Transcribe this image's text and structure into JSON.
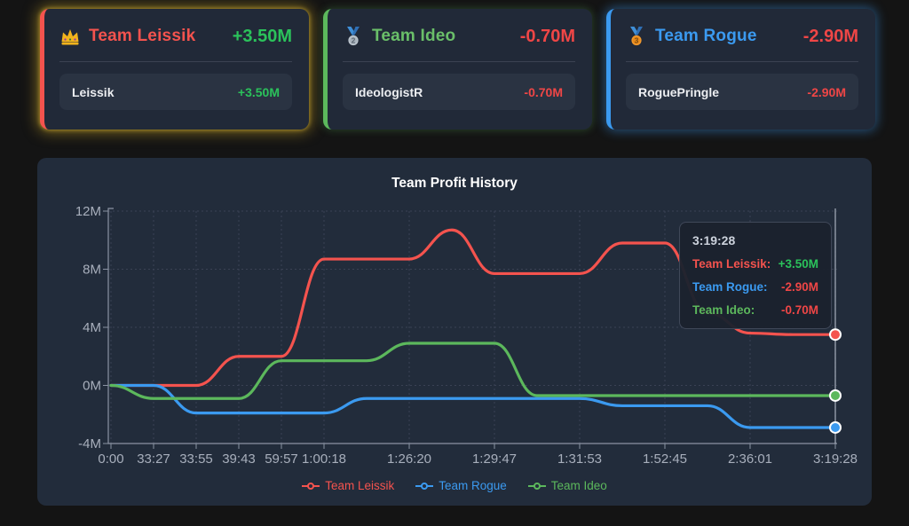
{
  "cards": [
    {
      "rank_icon": "crown-icon",
      "name": "Team Leissik",
      "name_color": "#f4534e",
      "value": "+3.50M",
      "value_color": "#2bc25b",
      "accent": "#f4534e",
      "member": {
        "name": "Leissik",
        "value": "+3.50M",
        "value_color": "#2bc25b"
      }
    },
    {
      "rank_icon": "silver-medal-icon",
      "name": "Team Ideo",
      "name_color": "#6abf69",
      "value": "-0.70M",
      "value_color": "#ef4646",
      "accent": "#5cb85c",
      "member": {
        "name": "IdeologistR",
        "value": "-0.70M",
        "value_color": "#ef4646"
      }
    },
    {
      "rank_icon": "bronze-medal-icon",
      "name": "Team Rogue",
      "name_color": "#3b9af0",
      "value": "-2.90M",
      "value_color": "#ef4646",
      "accent": "#3b9af0",
      "member": {
        "name": "RoguePringle",
        "value": "-2.90M",
        "value_color": "#ef4646"
      }
    }
  ],
  "chart": {
    "title": "Team Profit History",
    "legend": {
      "items": [
        {
          "label": "Team Leissik",
          "color": "#f4534e"
        },
        {
          "label": "Team Rogue",
          "color": "#3b9af0"
        },
        {
          "label": "Team Ideo",
          "color": "#5cb85c"
        }
      ]
    },
    "tooltip": {
      "title": "3:19:28",
      "rows": [
        {
          "name": "Team Leissik:",
          "name_color": "#f4534e",
          "value": "+3.50M",
          "value_color": "#2bc25b"
        },
        {
          "name": "Team Rogue:",
          "name_color": "#3b9af0",
          "value": "-2.90M",
          "value_color": "#ef4646"
        },
        {
          "name": "Team Ideo:",
          "name_color": "#5cb85c",
          "value": "-0.70M",
          "value_color": "#ef4646"
        }
      ]
    }
  },
  "chart_data": {
    "type": "line",
    "title": "Team Profit History",
    "x_tick_labels": [
      "0:00",
      "33:27",
      "33:55",
      "39:43",
      "59:57",
      "1:00:18",
      "1:26:20",
      "1:29:47",
      "1:31:53",
      "1:52:45",
      "2:36:01",
      "3:19:28"
    ],
    "x_tick_slots": [
      0,
      1,
      2,
      3,
      4,
      5,
      7,
      9,
      11,
      13,
      15,
      17
    ],
    "n_points": 18,
    "y_tick_labels": [
      "12M",
      "8M",
      "4M",
      "0M",
      "-4M"
    ],
    "y_tick_values": [
      12,
      8,
      4,
      0,
      -4
    ],
    "ylim": [
      -4,
      12
    ],
    "grid": "dotted",
    "legend_position": "bottom",
    "crosshair_slot": 17,
    "series": [
      {
        "name": "Team Leissik",
        "color": "#f4534e",
        "values": [
          0,
          0,
          0,
          2.0,
          2.0,
          8.7,
          8.7,
          8.7,
          10.7,
          7.7,
          7.7,
          7.7,
          9.8,
          9.8,
          5.0,
          3.6,
          3.5,
          3.5
        ]
      },
      {
        "name": "Team Rogue",
        "color": "#3b9af0",
        "values": [
          0,
          0,
          -1.9,
          -1.9,
          -1.9,
          -1.9,
          -0.9,
          -0.9,
          -0.9,
          -0.9,
          -0.9,
          -0.9,
          -1.4,
          -1.4,
          -1.4,
          -2.9,
          -2.9,
          -2.9
        ]
      },
      {
        "name": "Team Ideo",
        "color": "#5cb85c",
        "values": [
          0,
          -0.9,
          -0.9,
          -0.9,
          1.7,
          1.7,
          1.7,
          2.9,
          2.9,
          2.9,
          -0.7,
          -0.7,
          -0.7,
          -0.7,
          -0.7,
          -0.7,
          -0.7,
          -0.7
        ]
      }
    ]
  }
}
